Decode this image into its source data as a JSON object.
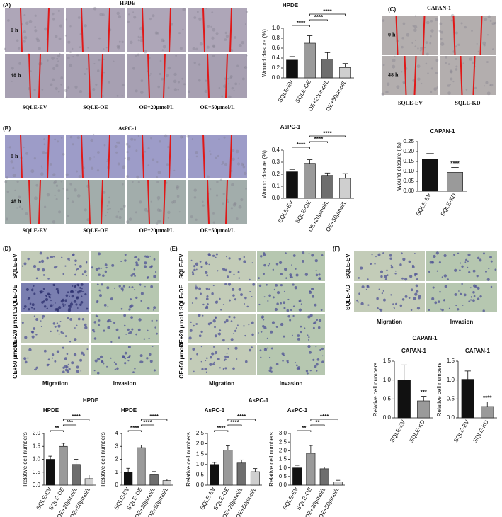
{
  "panel_labels": [
    "(A)",
    "(B)",
    "(C)",
    "(D)",
    "(E)",
    "(F)"
  ],
  "wound": [
    {
      "title": "HPDE",
      "rows": [
        "0 h",
        "48 h"
      ],
      "columns": [
        "SQLE-EV",
        "SQLE-OE",
        "OE+20μmol/L",
        "OE+50μmol/L"
      ]
    },
    {
      "title": "AsPC-1",
      "rows": [
        "0 h",
        "48 h"
      ],
      "columns": [
        "SQLE-EV",
        "SQLE-OE",
        "OE+20μmol/L",
        "OE+50μmol/L"
      ]
    },
    {
      "title": "CAPAN-1",
      "rows": [
        "0 h",
        "48 h"
      ],
      "columns": [
        "SQLE-EV",
        "SQLE-KD"
      ]
    }
  ],
  "transwell": [
    {
      "title": "HPDE",
      "rows": [
        "SQLE-EV",
        "SQLE-OE",
        "OE+20 μmol/L",
        "OE+50 μmol/L"
      ],
      "columns": [
        "Migration",
        "Invasion"
      ]
    },
    {
      "title": "AsPC-1",
      "rows": [
        "SQLE-EV",
        "SQLE-OE",
        "OE+20 μmol/L",
        "OE+50 μmol/L"
      ],
      "columns": [
        "Migration",
        "Invasion"
      ]
    },
    {
      "title": "CAPAN-1",
      "rows": [
        "SQLE-EV",
        "SQLE-KD"
      ],
      "columns": [
        "Migration",
        "Invasion"
      ]
    }
  ],
  "chart_data": [
    {
      "type": "bar",
      "title": "HPDE",
      "ylabel": "Wound closure (%)",
      "categories": [
        "SQLE-EV",
        "SQLE-OE",
        "OE+20μmol/L",
        "OE+50μmol/L"
      ],
      "values": [
        0.36,
        0.7,
        0.38,
        0.21
      ],
      "errors": [
        0.07,
        0.15,
        0.13,
        0.08
      ],
      "colors": [
        "#111111",
        "#9a9a9a",
        "#6e6e6e",
        "#cfcfcf"
      ],
      "ylim": [
        0,
        1.0
      ],
      "yticks": [
        {
          "value": 0,
          "label": "0.0"
        },
        0.2,
        0.4,
        0.6,
        0.8,
        {
          "value": 1.0,
          "label": "1.0"
        }
      ],
      "comparisons": [
        {
          "label": "****",
          "pair": [
            0,
            1
          ]
        },
        {
          "label": "****",
          "pair": [
            1,
            2
          ]
        },
        {
          "label": "****",
          "pair": [
            1,
            3
          ]
        }
      ]
    },
    {
      "type": "bar",
      "title": "AsPC-1",
      "ylabel": "Wound closure (%)",
      "categories": [
        "SQLE-EV",
        "SQLE-OE",
        "OE+20μmol/L",
        "OE+50μmol/L"
      ],
      "values": [
        0.22,
        0.29,
        0.19,
        0.165
      ],
      "errors": [
        0.02,
        0.03,
        0.02,
        0.04
      ],
      "colors": [
        "#111111",
        "#9a9a9a",
        "#6e6e6e",
        "#cfcfcf"
      ],
      "ylim": [
        0,
        0.4
      ],
      "yticks": [
        {
          "value": 0,
          "label": "0.0"
        },
        0.1,
        0.2,
        0.3,
        0.4
      ],
      "comparisons": [
        {
          "label": "****",
          "pair": [
            0,
            1
          ]
        },
        {
          "label": "****",
          "pair": [
            1,
            2
          ]
        },
        {
          "label": "****",
          "pair": [
            1,
            3
          ]
        }
      ]
    },
    {
      "type": "bar",
      "title": "CAPAN-1",
      "ylabel": "Wound closure (%)",
      "categories": [
        "SQLE-EV",
        "SQLE-KD"
      ],
      "values": [
        0.163,
        0.095
      ],
      "errors": [
        0.027,
        0.025
      ],
      "colors": [
        "#111111",
        "#9a9a9a"
      ],
      "ylim": [
        0,
        0.25
      ],
      "yticks": [
        {
          "value": 0,
          "label": "0.00"
        },
        {
          "value": 0.05,
          "label": "0.05"
        },
        {
          "value": 0.1,
          "label": "0.10"
        },
        {
          "value": 0.15,
          "label": "0.15"
        },
        {
          "value": 0.2,
          "label": "0.20"
        },
        {
          "value": 0.25,
          "label": "0.25"
        }
      ],
      "annotations": [
        {
          "label": "****",
          "index": 1
        }
      ]
    },
    {
      "type": "bar",
      "title": "HPDE",
      "ylabel": "Relative cell numbers",
      "categories": [
        "SQLE-EV",
        "SQLE-OE",
        "OE+20μmol/L",
        "OE+50μmol/L"
      ],
      "values": [
        1.0,
        1.5,
        0.8,
        0.25
      ],
      "errors": [
        0.12,
        0.12,
        0.2,
        0.15
      ],
      "colors": [
        "#111111",
        "#9a9a9a",
        "#6e6e6e",
        "#cfcfcf"
      ],
      "ylim": [
        0,
        2.0
      ],
      "yticks": [
        {
          "value": 0,
          "label": "0.0"
        },
        0.5,
        {
          "value": 1.0,
          "label": "1.0"
        },
        1.5,
        {
          "value": 2.0,
          "label": "2.0"
        }
      ],
      "comparisons": [
        {
          "label": "**",
          "pair": [
            0,
            1
          ]
        },
        {
          "label": "***",
          "pair": [
            1,
            2
          ]
        },
        {
          "label": "****",
          "pair": [
            1,
            3
          ]
        }
      ]
    },
    {
      "type": "bar",
      "title": "HPDE",
      "ylabel": "Relative cell numbers",
      "categories": [
        "SQLE-EV",
        "SQLE-OE",
        "OE+20μmol/L",
        "OE+50μmol/L"
      ],
      "values": [
        1.0,
        2.9,
        0.85,
        0.35
      ],
      "errors": [
        0.3,
        0.2,
        0.2,
        0.12
      ],
      "colors": [
        "#111111",
        "#9a9a9a",
        "#6e6e6e",
        "#cfcfcf"
      ],
      "ylim": [
        0,
        4
      ],
      "yticks": [
        0,
        1,
        2,
        3,
        4
      ],
      "comparisons": [
        {
          "label": "****",
          "pair": [
            0,
            1
          ]
        },
        {
          "label": "****",
          "pair": [
            1,
            2
          ]
        },
        {
          "label": "****",
          "pair": [
            1,
            3
          ]
        }
      ]
    },
    {
      "type": "bar",
      "title": "AsPC-1",
      "ylabel": "Relative cell numbers",
      "categories": [
        "SQLE-EV",
        "SQLE-OE",
        "OE+20μmol/L",
        "OE+50μmol/L"
      ],
      "values": [
        1.0,
        1.7,
        1.07,
        0.65
      ],
      "errors": [
        0.1,
        0.2,
        0.15,
        0.15
      ],
      "colors": [
        "#111111",
        "#9a9a9a",
        "#6e6e6e",
        "#cfcfcf"
      ],
      "ylim": [
        0,
        2.5
      ],
      "yticks": [
        {
          "value": 0,
          "label": "0.0"
        },
        0.5,
        {
          "value": 1.0,
          "label": "1.0"
        },
        1.5,
        {
          "value": 2.0,
          "label": "2.0"
        },
        2.5
      ],
      "comparisons": [
        {
          "label": "****",
          "pair": [
            0,
            1
          ]
        },
        {
          "label": "****",
          "pair": [
            1,
            2
          ]
        },
        {
          "label": "****",
          "pair": [
            1,
            3
          ]
        }
      ]
    },
    {
      "type": "bar",
      "title": "AsPC-1",
      "ylabel": "Relative cell numbers",
      "categories": [
        "SQLE-EV",
        "SQLE-OE",
        "OE+20μmol/L",
        "OE+50μmol/L"
      ],
      "values": [
        1.0,
        1.85,
        0.95,
        0.18
      ],
      "errors": [
        0.15,
        0.45,
        0.1,
        0.1
      ],
      "colors": [
        "#111111",
        "#9a9a9a",
        "#6e6e6e",
        "#cfcfcf"
      ],
      "ylim": [
        0,
        3.0
      ],
      "yticks": [
        {
          "value": 0,
          "label": "0.0"
        },
        0.5,
        {
          "value": 1.0,
          "label": "1.0"
        },
        1.5,
        {
          "value": 2.0,
          "label": "2.0"
        },
        2.5,
        {
          "value": 3.0,
          "label": "3.0"
        }
      ],
      "comparisons": [
        {
          "label": "**",
          "pair": [
            0,
            1
          ]
        },
        {
          "label": "**",
          "pair": [
            1,
            2
          ]
        },
        {
          "label": "****",
          "pair": [
            1,
            3
          ]
        }
      ]
    },
    {
      "type": "bar",
      "title": "CAPAN-1",
      "ylabel": "Relative cell numbers",
      "categories": [
        "SQLE-EV",
        "SQLE-KD"
      ],
      "values": [
        1.0,
        0.45
      ],
      "errors": [
        0.4,
        0.12
      ],
      "colors": [
        "#111111",
        "#9a9a9a"
      ],
      "ylim": [
        0,
        1.5
      ],
      "yticks": [
        {
          "value": 0,
          "label": "0.0"
        },
        0.5,
        {
          "value": 1.0,
          "label": "1.0"
        },
        1.5
      ],
      "annotations": [
        {
          "label": "***",
          "index": 1
        }
      ]
    },
    {
      "type": "bar",
      "title": "CAPAN-1",
      "ylabel": "Relative cell numbers",
      "categories": [
        "SQLE-EV",
        "SQLE-KD"
      ],
      "values": [
        1.02,
        0.3
      ],
      "errors": [
        0.22,
        0.12
      ],
      "colors": [
        "#111111",
        "#9a9a9a"
      ],
      "ylim": [
        0,
        1.5
      ],
      "yticks": [
        {
          "value": 0,
          "label": "0.0"
        },
        0.5,
        {
          "value": 1.0,
          "label": "1.0"
        },
        1.5
      ],
      "annotations": [
        {
          "label": "****",
          "index": 1
        }
      ]
    }
  ]
}
